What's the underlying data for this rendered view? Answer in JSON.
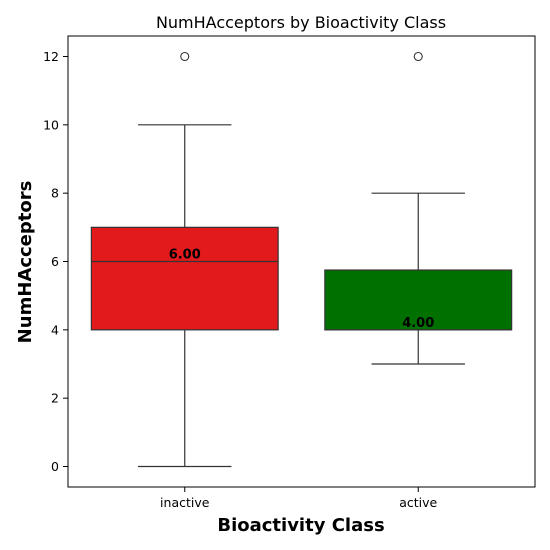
{
  "chart_data": {
    "type": "box",
    "title": "NumHAcceptors by Bioactivity Class",
    "xlabel": "Bioactivity Class",
    "ylabel": "NumHAcceptors",
    "ylim": [
      -0.6,
      12.6
    ],
    "yticks": [
      0,
      2,
      4,
      6,
      8,
      10,
      12
    ],
    "categories": [
      "inactive",
      "active"
    ],
    "boxes": [
      {
        "category": "inactive",
        "color": "#e31a1c",
        "whisker_low": 0,
        "q1": 4,
        "median": 6,
        "q3": 7,
        "whisker_high": 10,
        "outliers": [
          12
        ],
        "median_label": "6.00"
      },
      {
        "category": "active",
        "color": "#007000",
        "whisker_low": 3,
        "q1": 4,
        "median": 4,
        "q3": 5.75,
        "whisker_high": 8,
        "outliers": [
          12
        ],
        "median_label": "4.00"
      }
    ],
    "grid": false,
    "legend": "none"
  }
}
